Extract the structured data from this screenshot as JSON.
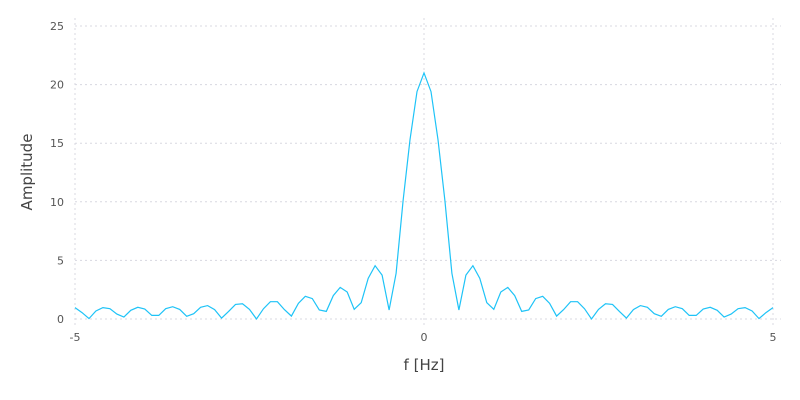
{
  "chart_data": {
    "type": "line",
    "xlabel": "f [Hz]",
    "ylabel": "Amplitude",
    "xlim": [
      -5,
      5
    ],
    "ylim": [
      0,
      25
    ],
    "xticks": [
      "-5",
      "0",
      "5"
    ],
    "xtick_values": [
      -5,
      0,
      5
    ],
    "yticks": [
      "0",
      "5",
      "10",
      "15",
      "20",
      "25"
    ],
    "ytick_values": [
      0,
      5,
      10,
      15,
      20,
      25
    ],
    "grid": true,
    "color": "#1ec3f7",
    "x_step": 0.1,
    "y_left_half_from_-5_to_0": [
      0.97,
      0.55,
      0.03,
      0.68,
      0.97,
      0.88,
      0.42,
      0.17,
      0.74,
      1.0,
      0.85,
      0.31,
      0.31,
      0.88,
      1.05,
      0.82,
      0.23,
      0.45,
      1.0,
      1.14,
      0.8,
      0.08,
      0.65,
      1.25,
      1.3,
      0.82,
      0.0,
      0.88,
      1.48,
      1.48,
      0.8,
      0.25,
      1.34,
      1.94,
      1.74,
      0.77,
      0.65,
      2.0,
      2.7,
      2.3,
      0.83,
      1.39,
      3.47,
      4.55,
      3.75,
      0.77,
      3.9,
      10.1,
      15.3,
      19.4,
      21.0
    ],
    "symmetric": true
  }
}
